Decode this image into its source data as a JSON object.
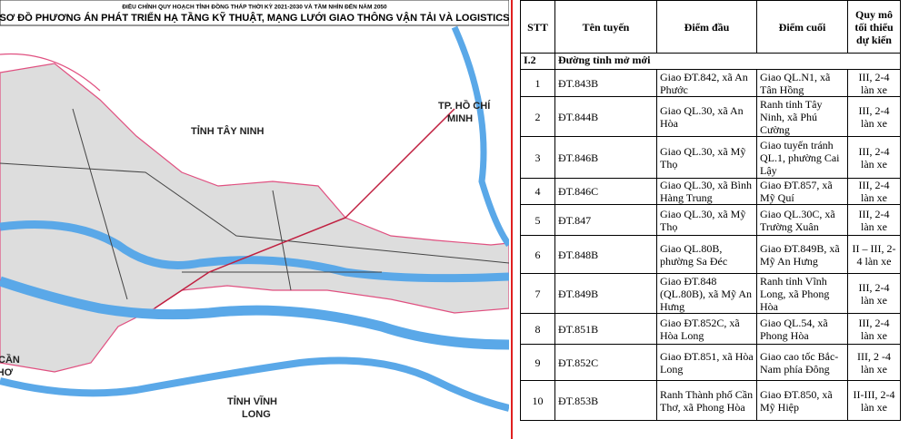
{
  "map": {
    "title_line1": "ĐIỀU CHỈNH QUY HOẠCH TỈNH ĐỒNG THÁP THỜI KỲ 2021-2030 VÀ TẦM NHÌN ĐẾN NĂM 2050",
    "title_line2": "SƠ ĐỒ PHƯƠNG ÁN PHÁT TRIỂN HẠ TẦNG KỸ THUẬT, MẠNG LƯỚI GIAO THÔNG VẬN TẢI VÀ LOGISTICS",
    "labels": [
      "TỈNH TÂY NINH",
      "TP. HỒ CHÍ",
      "MINH",
      "TỈNH VĨNH",
      "LONG",
      "CẦN",
      "THƠ"
    ]
  },
  "table": {
    "headers": [
      "STT",
      "Tên tuyến",
      "Điểm đầu",
      "Điểm cuối",
      "Quy mô tối thiểu dự kiến"
    ],
    "section": [
      "I.2",
      "Đường tỉnh mở mới"
    ],
    "rows": [
      [
        "1",
        "ĐT.843B",
        "Giao ĐT.842, xã An Phước",
        "Giao QL.N1, xã Tân Hồng",
        "III, 2-4 làn xe"
      ],
      [
        "2",
        "ĐT.844B",
        "Giao QL.30, xã An Hòa",
        "Ranh tỉnh Tây Ninh, xã Phú Cường",
        "III, 2-4 làn xe"
      ],
      [
        "3",
        "ĐT.846B",
        "Giao QL.30, xã Mỹ Thọ",
        "Giao tuyến tránh QL.1, phường Cai Lậy",
        "III, 2-4 làn xe"
      ],
      [
        "4",
        "ĐT.846C",
        "Giao QL.30, xã Bình Hàng Trung",
        "Giao ĐT.857, xã Mỹ Quí",
        "III, 2-4 làn xe"
      ],
      [
        "5",
        "ĐT.847",
        "Giao QL.30, xã Mỹ Thọ",
        "Giao QL.30C, xã Trường Xuân",
        "III, 2-4 làn xe"
      ],
      [
        "6",
        "ĐT.848B",
        "Giao QL.80B, phường Sa Đéc",
        "Giao ĐT.849B, xã Mỹ An Hưng",
        "II – III, 2-4 làn xe"
      ],
      [
        "7",
        "ĐT.849B",
        "Giao ĐT.848 (QL.80B), xã Mỹ An Hưng",
        "Ranh tỉnh Vĩnh Long, xã Phong Hòa",
        "III, 2-4 làn xe"
      ],
      [
        "8",
        "ĐT.851B",
        "Giao ĐT.852C, xã Hòa Long",
        "Giao QL.54, xã Phong Hòa",
        "III, 2-4 làn xe"
      ],
      [
        "9",
        "ĐT.852C",
        "Giao ĐT.851, xã Hòa Long",
        "Giao cao tốc Bắc-Nam phía Đông",
        "III, 2 -4 làn xe"
      ],
      [
        "10",
        "ĐT.853B",
        "Ranh Thành phố Cần Thơ, xã Phong Hòa",
        "Giao ĐT.850, xã Mỹ Hiệp",
        "II-III, 2-4 làn xe"
      ]
    ]
  }
}
